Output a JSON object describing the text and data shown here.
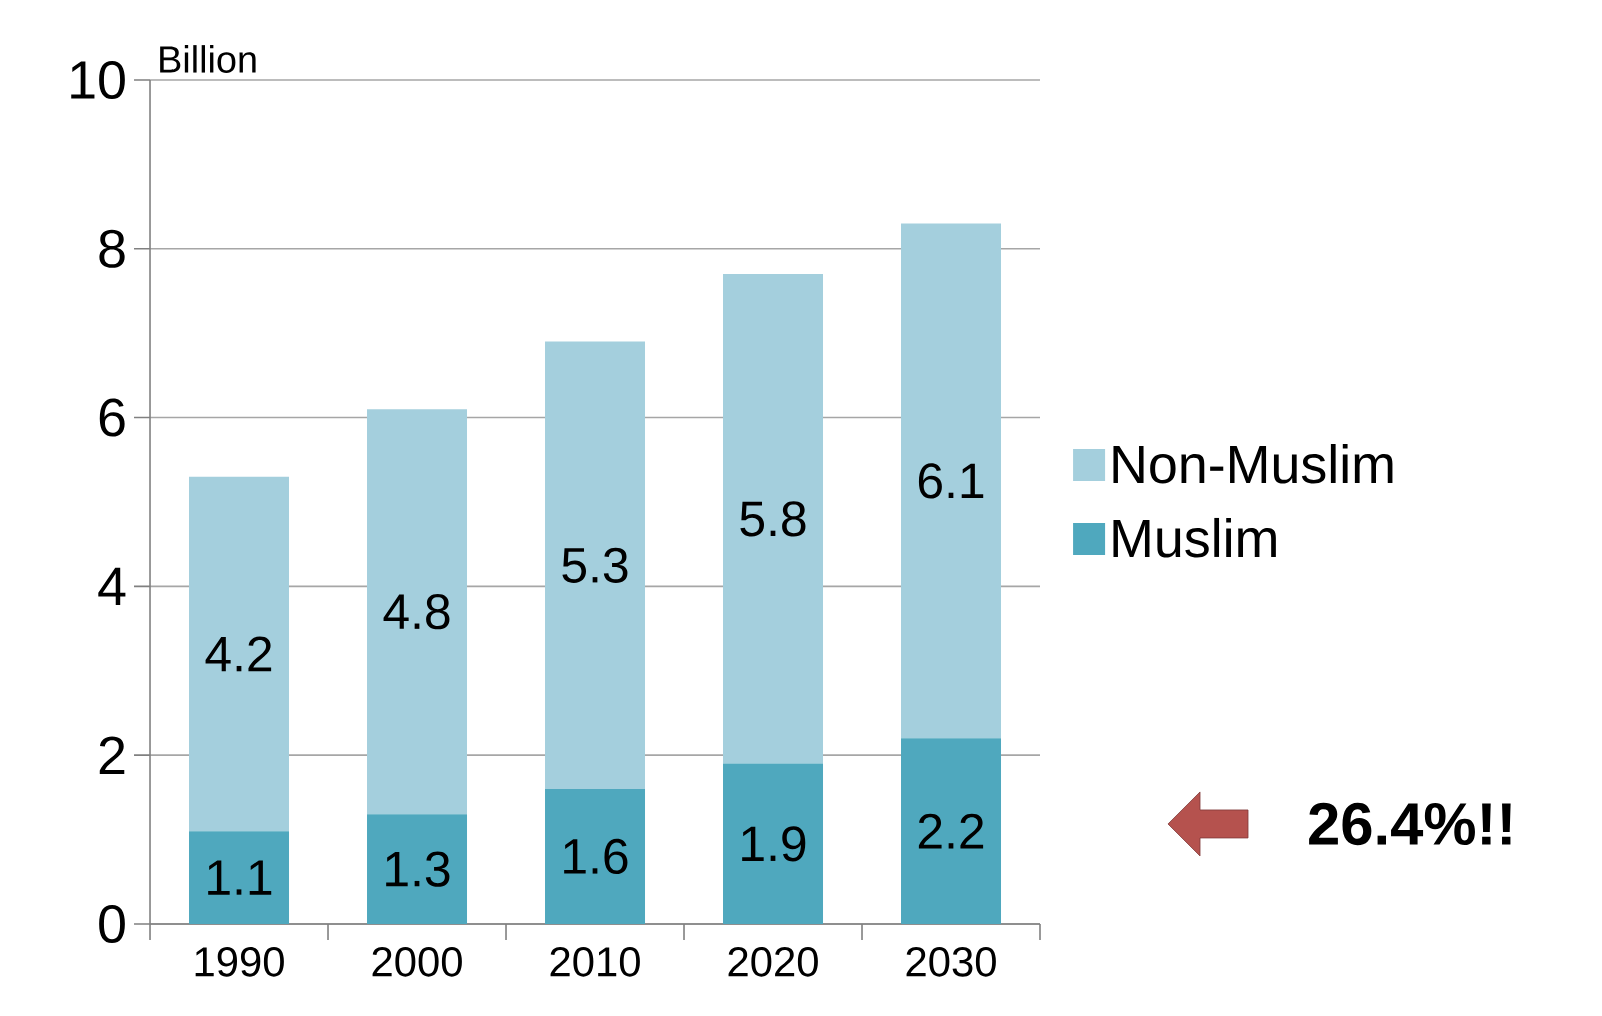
{
  "chart_data": {
    "type": "bar",
    "stacked": true,
    "ylabel": "Billion",
    "categories": [
      "1990",
      "2000",
      "2010",
      "2020",
      "2030"
    ],
    "series": [
      {
        "name": "Muslim",
        "color": "#4fa8be",
        "values": [
          1.1,
          1.3,
          1.6,
          1.9,
          2.2
        ]
      },
      {
        "name": "Non-Muslim",
        "color": "#a4cfdd",
        "values": [
          4.2,
          4.8,
          5.3,
          5.8,
          6.1
        ]
      }
    ],
    "ylim": [
      0,
      10
    ],
    "yticks": [
      0,
      2,
      4,
      6,
      8,
      10
    ],
    "grid": "y",
    "legend": "right",
    "data_labels": true,
    "annotations": [
      "26.4%!!"
    ]
  }
}
